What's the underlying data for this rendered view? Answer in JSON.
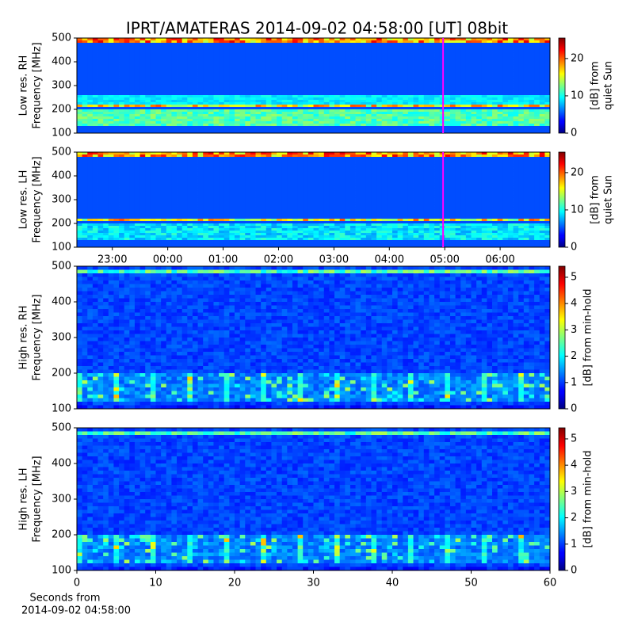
{
  "title": "IPRT/AMATERAS 2014-09-02 04:58:00 [UT]   08bit",
  "chart_data": [
    {
      "type": "spectrogram",
      "ylabel": [
        "Low res. RH",
        "Frequency [MHz]"
      ],
      "xlim": [
        22.36,
        30.9
      ],
      "ylim": [
        100,
        500
      ],
      "yticks": [
        100,
        200,
        300,
        400,
        500
      ],
      "marker_x": 28.97,
      "marker_color": "#ff00ff",
      "colorbar": {
        "label": [
          "[dB] from",
          "quiet Sun"
        ],
        "clim": [
          0,
          25.5
        ],
        "cticks": [
          0,
          10,
          20
        ]
      }
    },
    {
      "type": "spectrogram",
      "ylabel": [
        "Low res. LH",
        "Frequency [MHz]"
      ],
      "xlim": [
        22.36,
        30.9
      ],
      "ylim": [
        100,
        500
      ],
      "yticks": [
        100,
        200,
        300,
        400,
        500
      ],
      "xticks": [
        {
          "value": 23,
          "label": "23:00"
        },
        {
          "value": 24,
          "label": "00:00"
        },
        {
          "value": 25,
          "label": "01:00"
        },
        {
          "value": 26,
          "label": "02:00"
        },
        {
          "value": 27,
          "label": "03:00"
        },
        {
          "value": 28,
          "label": "04:00"
        },
        {
          "value": 29,
          "label": "05:00"
        },
        {
          "value": 30,
          "label": "06:00"
        }
      ],
      "marker_x": 28.97,
      "marker_color": "#ff00ff",
      "colorbar": {
        "label": [
          "[dB] from",
          "quiet Sun"
        ],
        "clim": [
          0,
          25.5
        ],
        "cticks": [
          0,
          10,
          20
        ]
      }
    },
    {
      "type": "spectrogram",
      "ylabel": [
        "High res. RH",
        "Frequency [MHz]"
      ],
      "xlim": [
        0,
        60
      ],
      "ylim": [
        100,
        500
      ],
      "yticks": [
        100,
        200,
        300,
        400,
        500
      ],
      "colorbar": {
        "label": [
          "[dB] from min-hold"
        ],
        "clim": [
          0,
          5.42
        ],
        "cticks": [
          0,
          1,
          2,
          3,
          4,
          5
        ]
      }
    },
    {
      "type": "spectrogram",
      "ylabel": [
        "High res. LH",
        "Frequency [MHz]"
      ],
      "xlim": [
        0,
        60
      ],
      "ylim": [
        100,
        500
      ],
      "yticks": [
        100,
        200,
        300,
        400,
        500
      ],
      "xticks": [
        0,
        10,
        20,
        30,
        40,
        50,
        60
      ],
      "xlabel": [
        "Seconds from",
        "2014-09-02 04:58:00"
      ],
      "colorbar": {
        "label": [
          "[dB] from min-hold"
        ],
        "clim": [
          0,
          5.42
        ],
        "cticks": [
          0,
          1,
          2,
          3,
          4,
          5
        ]
      }
    }
  ]
}
